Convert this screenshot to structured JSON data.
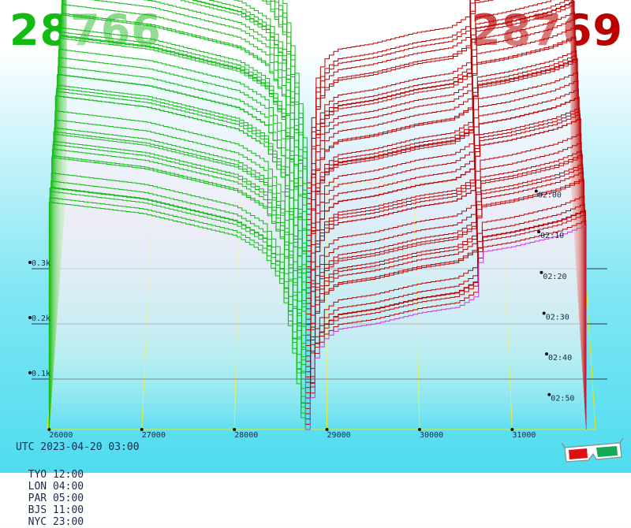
{
  "prices": {
    "bid": "28766",
    "ask": "28769"
  },
  "chart_data": {
    "type": "area",
    "x_ticks": [
      "26000",
      "27000",
      "28000",
      "29000",
      "30000",
      "31000"
    ],
    "xlim": [
      25980,
      31900
    ],
    "z_ticks": [
      "0.1k",
      "0.2k",
      "0.3k"
    ],
    "zlim": [
      0,
      0.45
    ],
    "time_ticks": [
      "02:00",
      "02:10",
      "02:20",
      "02:30",
      "02:40",
      "02:50"
    ],
    "time_range": [
      "01:57",
      "02:58"
    ],
    "mid_price": 28767.5,
    "series": [
      {
        "name": "bid",
        "color": "#11bb11",
        "x": [
          26000,
          26500,
          27000,
          27500,
          28000,
          28300,
          28500,
          28600,
          28700,
          28766
        ],
        "cumulative_volume_k": [
          0.46,
          0.45,
          0.44,
          0.42,
          0.4,
          0.37,
          0.31,
          0.22,
          0.1,
          0.0
        ]
      },
      {
        "name": "ask",
        "color": "#bb0000",
        "x": [
          28769,
          28850,
          28950,
          29100,
          29500,
          30000,
          30400,
          30600,
          30650,
          31000,
          31500,
          31800
        ],
        "cumulative_volume_k": [
          0.0,
          0.17,
          0.21,
          0.23,
          0.24,
          0.26,
          0.27,
          0.29,
          0.37,
          0.38,
          0.4,
          0.42
        ]
      }
    ],
    "grid": true,
    "legend": "none"
  },
  "footer": {
    "utc": "UTC 2023-04-20 03:00",
    "zones": [
      "TYO 12:00",
      "LON 04:00",
      "PAR 05:00",
      "BJS 11:00",
      "NYC 23:00"
    ]
  },
  "colors": {
    "bid": "#11bb11",
    "ask": "#bb0000",
    "grid": "#e8e800",
    "latest": "#cc33ee"
  },
  "icons": {
    "corner": "3d-glasses-icon"
  }
}
